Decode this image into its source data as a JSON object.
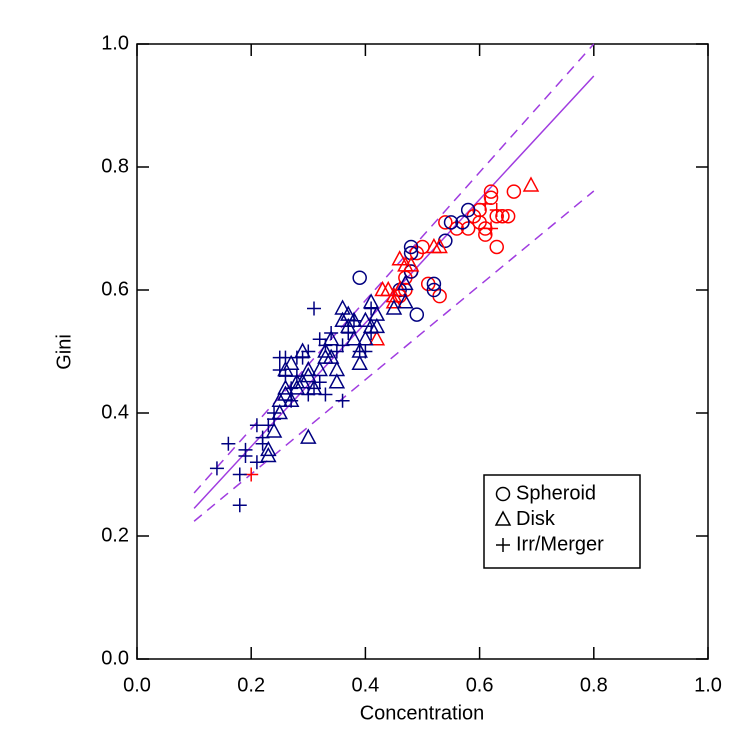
{
  "chart_data": {
    "type": "scatter",
    "xlabel": "Concentration",
    "ylabel": "Gini",
    "xlim": [
      0,
      1
    ],
    "ylim": [
      0,
      1
    ],
    "xticks": [
      {
        "value": 0,
        "label": "0.0"
      },
      0.2,
      0.4,
      0.6,
      0.8,
      {
        "value": 1,
        "label": "1.0"
      }
    ],
    "yticks": [
      {
        "value": 0,
        "label": "0.0"
      },
      0.2,
      0.4,
      0.6,
      0.8,
      {
        "value": 1,
        "label": "1.0"
      }
    ],
    "legend_position": "lower right",
    "series": [
      {
        "name": "Spheroid",
        "marker": "circle",
        "x": [
          0.46,
          0.47,
          0.48,
          0.49,
          0.5,
          0.51,
          0.53,
          0.54,
          0.56,
          0.58,
          0.59,
          0.6,
          0.6,
          0.61,
          0.62,
          0.62,
          0.63,
          0.63,
          0.64,
          0.65,
          0.66,
          0.61,
          0.47,
          0.39,
          0.48,
          0.48,
          0.48,
          0.49,
          0.52,
          0.52,
          0.55,
          0.57,
          0.58,
          0.54,
          0.46
        ],
        "values": [
          0.59,
          0.62,
          0.63,
          0.66,
          0.67,
          0.61,
          0.59,
          0.71,
          0.7,
          0.7,
          0.72,
          0.71,
          0.73,
          0.7,
          0.75,
          0.76,
          0.72,
          0.67,
          0.72,
          0.72,
          0.76,
          0.69,
          0.6,
          0.62,
          0.67,
          0.66,
          0.63,
          0.56,
          0.6,
          0.61,
          0.71,
          0.71,
          0.73,
          0.68,
          0.6
        ],
        "colors": [
          "red",
          "red",
          "red",
          "red",
          "red",
          "red",
          "red",
          "red",
          "red",
          "red",
          "red",
          "red",
          "red",
          "red",
          "red",
          "red",
          "red",
          "red",
          "red",
          "red",
          "red",
          "red",
          "red",
          "navy",
          "navy",
          "navy",
          "navy",
          "navy",
          "navy",
          "navy",
          "navy",
          "navy",
          "navy",
          "navy",
          "navy"
        ]
      },
      {
        "name": "Disk",
        "marker": "triangle",
        "x": [
          0.43,
          0.42,
          0.44,
          0.45,
          0.46,
          0.46,
          0.47,
          0.48,
          0.52,
          0.53,
          0.69,
          0.45,
          0.23,
          0.23,
          0.24,
          0.25,
          0.25,
          0.26,
          0.26,
          0.26,
          0.27,
          0.27,
          0.28,
          0.28,
          0.29,
          0.3,
          0.3,
          0.3,
          0.31,
          0.32,
          0.33,
          0.33,
          0.34,
          0.34,
          0.35,
          0.35,
          0.36,
          0.36,
          0.37,
          0.37,
          0.38,
          0.38,
          0.39,
          0.39,
          0.4,
          0.4,
          0.41,
          0.41,
          0.42,
          0.42,
          0.47,
          0.47,
          0.45,
          0.29
        ],
        "values": [
          0.6,
          0.52,
          0.6,
          0.58,
          0.6,
          0.65,
          0.64,
          0.64,
          0.67,
          0.67,
          0.77,
          0.59,
          0.34,
          0.33,
          0.37,
          0.4,
          0.42,
          0.43,
          0.44,
          0.47,
          0.48,
          0.42,
          0.44,
          0.45,
          0.5,
          0.46,
          0.47,
          0.36,
          0.44,
          0.47,
          0.49,
          0.5,
          0.49,
          0.52,
          0.45,
          0.47,
          0.55,
          0.57,
          0.54,
          0.56,
          0.52,
          0.55,
          0.5,
          0.48,
          0.52,
          0.55,
          0.54,
          0.58,
          0.56,
          0.54,
          0.58,
          0.61,
          0.57,
          0.45
        ],
        "colors": [
          "red",
          "red",
          "red",
          "red",
          "red",
          "red",
          "red",
          "red",
          "red",
          "red",
          "red",
          "red",
          "navy",
          "navy",
          "navy",
          "navy",
          "navy",
          "navy",
          "navy",
          "navy",
          "navy",
          "navy",
          "navy",
          "navy",
          "navy",
          "navy",
          "navy",
          "navy",
          "navy",
          "navy",
          "navy",
          "navy",
          "navy",
          "navy",
          "navy",
          "navy",
          "navy",
          "navy",
          "navy",
          "navy",
          "navy",
          "navy",
          "navy",
          "navy",
          "navy",
          "navy",
          "navy",
          "navy",
          "navy",
          "navy",
          "navy",
          "navy",
          "navy",
          "navy"
        ]
      },
      {
        "name": "Irr/Merger",
        "marker": "plus",
        "x": [
          0.2,
          0.62,
          0.63,
          0.61,
          0.14,
          0.16,
          0.18,
          0.18,
          0.19,
          0.19,
          0.21,
          0.21,
          0.22,
          0.23,
          0.24,
          0.25,
          0.25,
          0.26,
          0.26,
          0.27,
          0.27,
          0.28,
          0.28,
          0.29,
          0.3,
          0.3,
          0.31,
          0.31,
          0.32,
          0.32,
          0.33,
          0.33,
          0.34,
          0.35,
          0.36,
          0.36,
          0.37,
          0.38,
          0.39,
          0.4,
          0.41,
          0.41,
          0.22,
          0.24
        ],
        "values": [
          0.3,
          0.7,
          0.73,
          0.74,
          0.31,
          0.35,
          0.3,
          0.25,
          0.33,
          0.34,
          0.32,
          0.38,
          0.35,
          0.38,
          0.4,
          0.47,
          0.49,
          0.49,
          0.46,
          0.42,
          0.44,
          0.49,
          0.46,
          0.49,
          0.43,
          0.5,
          0.57,
          0.44,
          0.52,
          0.45,
          0.51,
          0.43,
          0.53,
          0.5,
          0.42,
          0.51,
          0.53,
          0.55,
          0.5,
          0.5,
          0.57,
          0.53,
          0.36,
          0.39
        ],
        "colors": [
          "red",
          "red",
          "red",
          "red",
          "navy",
          "navy",
          "navy",
          "navy",
          "navy",
          "navy",
          "navy",
          "navy",
          "navy",
          "navy",
          "navy",
          "navy",
          "navy",
          "navy",
          "navy",
          "navy",
          "navy",
          "navy",
          "navy",
          "navy",
          "navy",
          "navy",
          "navy",
          "navy",
          "navy",
          "navy",
          "navy",
          "navy",
          "navy",
          "navy",
          "navy",
          "navy",
          "navy",
          "navy",
          "navy",
          "navy",
          "navy",
          "navy",
          "navy",
          "navy"
        ]
      }
    ],
    "lines": [
      {
        "x": [
          0.1,
          0.8
        ],
        "values": [
          0.245,
          0.948
        ],
        "style": "solid",
        "color": "#a03ce0"
      },
      {
        "x": [
          0.1,
          0.8
        ],
        "values": [
          0.27,
          1.0
        ],
        "style": "dashed",
        "color": "#a03ce0"
      },
      {
        "x": [
          0.1,
          0.8
        ],
        "values": [
          0.224,
          0.761
        ],
        "style": "dashed",
        "color": "#a03ce0"
      }
    ]
  }
}
